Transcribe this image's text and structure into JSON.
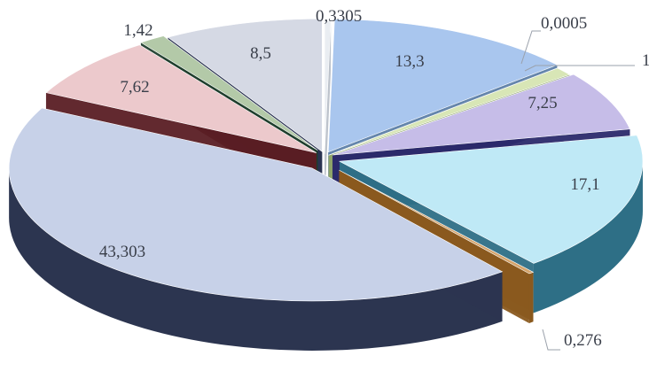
{
  "chart_data": {
    "type": "pie",
    "style": "3d-exploded",
    "title": "",
    "legend": "none",
    "slices": [
      {
        "label": "0,3305",
        "value": 0.3305,
        "color": "#e9edf2",
        "side": "#b9c0c9"
      },
      {
        "label": "13,3",
        "value": 13.3,
        "color": "#a9c6ee",
        "side": "#5d7fa8"
      },
      {
        "label": "0,0005",
        "value": 0.0005,
        "color": "#f3f3c8",
        "side": "#b7b78a"
      },
      {
        "label": "1",
        "value": 1,
        "color": "#d8e6b6",
        "side": "#8ea369"
      },
      {
        "label": "7,25",
        "value": 7.25,
        "color": "#c6bde8",
        "side": "#2b2a6b"
      },
      {
        "label": "17,1",
        "value": 17.1,
        "color": "#bfe9f6",
        "side": "#2e6f86"
      },
      {
        "label": "0,276",
        "value": 0.276,
        "color": "#d4a46c",
        "side": "#8a5a1f"
      },
      {
        "label": "43,303",
        "value": 43.303,
        "color": "#c7d1e8",
        "side": "#2c3550"
      },
      {
        "label": "7,62",
        "value": 7.62,
        "color": "#ecc9cc",
        "side": "#5a1e24"
      },
      {
        "label": "1,42",
        "value": 1.42,
        "color": "#b3c9a8",
        "side": "#1f3d2c"
      },
      {
        "label": "8,5",
        "value": 8.5,
        "color": "#d5d9e4",
        "side": "#1e2748"
      }
    ]
  }
}
